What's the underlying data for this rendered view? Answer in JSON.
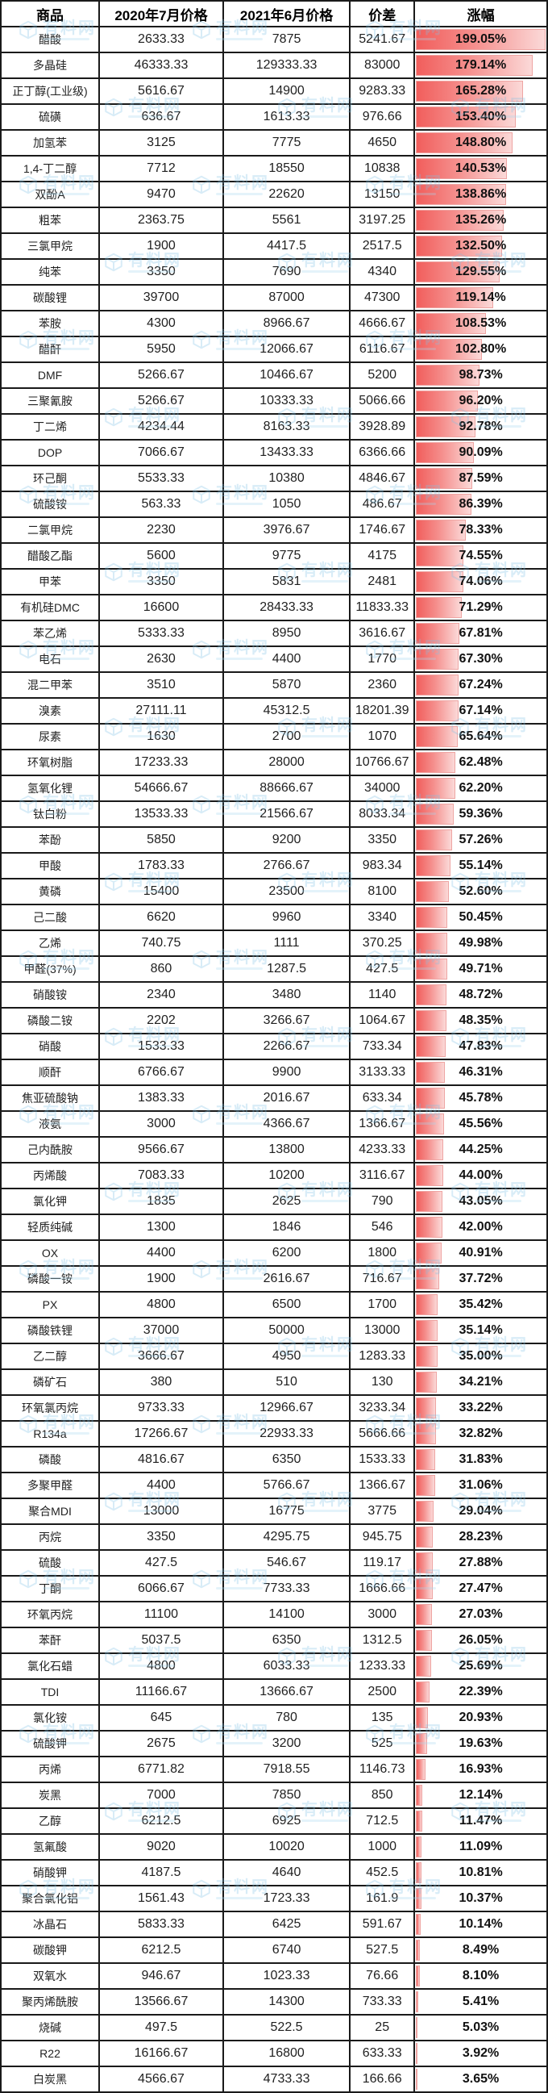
{
  "watermark": {
    "text": "有料网",
    "color": "#7fc2e6"
  },
  "chart_data": {
    "type": "table",
    "columns": [
      "商品",
      "2020年7月价格",
      "2021年6月价格",
      "价差",
      "涨幅"
    ],
    "bar_column_index": 4,
    "bar_axis_max_percent": 199.05,
    "bar_gradient": [
      "#f15e5c",
      "#fbd9d8"
    ],
    "bar_border_color": "#eea5a3",
    "rows": [
      [
        "醋酸",
        "2633.33",
        "7875",
        "5241.67",
        "199.05%"
      ],
      [
        "多晶硅",
        "46333.33",
        "129333.33",
        "83000",
        "179.14%"
      ],
      [
        "正丁醇(工业级)",
        "5616.67",
        "14900",
        "9283.33",
        "165.28%"
      ],
      [
        "硫磺",
        "636.67",
        "1613.33",
        "976.66",
        "153.40%"
      ],
      [
        "加氢苯",
        "3125",
        "7775",
        "4650",
        "148.80%"
      ],
      [
        "1,4-丁二醇",
        "7712",
        "18550",
        "10838",
        "140.53%"
      ],
      [
        "双酚A",
        "9470",
        "22620",
        "13150",
        "138.86%"
      ],
      [
        "粗苯",
        "2363.75",
        "5561",
        "3197.25",
        "135.26%"
      ],
      [
        "三氯甲烷",
        "1900",
        "4417.5",
        "2517.5",
        "132.50%"
      ],
      [
        "纯苯",
        "3350",
        "7690",
        "4340",
        "129.55%"
      ],
      [
        "碳酸锂",
        "39700",
        "87000",
        "47300",
        "119.14%"
      ],
      [
        "苯胺",
        "4300",
        "8966.67",
        "4666.67",
        "108.53%"
      ],
      [
        "醋酐",
        "5950",
        "12066.67",
        "6116.67",
        "102.80%"
      ],
      [
        "DMF",
        "5266.67",
        "10466.67",
        "5200",
        "98.73%"
      ],
      [
        "三聚氰胺",
        "5266.67",
        "10333.33",
        "5066.66",
        "96.20%"
      ],
      [
        "丁二烯",
        "4234.44",
        "8163.33",
        "3928.89",
        "92.78%"
      ],
      [
        "DOP",
        "7066.67",
        "13433.33",
        "6366.66",
        "90.09%"
      ],
      [
        "环己酮",
        "5533.33",
        "10380",
        "4846.67",
        "87.59%"
      ],
      [
        "硫酸铵",
        "563.33",
        "1050",
        "486.67",
        "86.39%"
      ],
      [
        "二氯甲烷",
        "2230",
        "3976.67",
        "1746.67",
        "78.33%"
      ],
      [
        "醋酸乙酯",
        "5600",
        "9775",
        "4175",
        "74.55%"
      ],
      [
        "甲苯",
        "3350",
        "5831",
        "2481",
        "74.06%"
      ],
      [
        "有机硅DMC",
        "16600",
        "28433.33",
        "11833.33",
        "71.29%"
      ],
      [
        "苯乙烯",
        "5333.33",
        "8950",
        "3616.67",
        "67.81%"
      ],
      [
        "电石",
        "2630",
        "4400",
        "1770",
        "67.30%"
      ],
      [
        "混二甲苯",
        "3510",
        "5870",
        "2360",
        "67.24%"
      ],
      [
        "溴素",
        "27111.11",
        "45312.5",
        "18201.39",
        "67.14%"
      ],
      [
        "尿素",
        "1630",
        "2700",
        "1070",
        "65.64%"
      ],
      [
        "环氧树脂",
        "17233.33",
        "28000",
        "10766.67",
        "62.48%"
      ],
      [
        "氢氧化锂",
        "54666.67",
        "88666.67",
        "34000",
        "62.20%"
      ],
      [
        "钛白粉",
        "13533.33",
        "21566.67",
        "8033.34",
        "59.36%"
      ],
      [
        "苯酚",
        "5850",
        "9200",
        "3350",
        "57.26%"
      ],
      [
        "甲酸",
        "1783.33",
        "2766.67",
        "983.34",
        "55.14%"
      ],
      [
        "黄磷",
        "15400",
        "23500",
        "8100",
        "52.60%"
      ],
      [
        "己二酸",
        "6620",
        "9960",
        "3340",
        "50.45%"
      ],
      [
        "乙烯",
        "740.75",
        "1111",
        "370.25",
        "49.98%"
      ],
      [
        "甲醛(37%)",
        "860",
        "1287.5",
        "427.5",
        "49.71%"
      ],
      [
        "硝酸铵",
        "2340",
        "3480",
        "1140",
        "48.72%"
      ],
      [
        "磷酸二铵",
        "2202",
        "3266.67",
        "1064.67",
        "48.35%"
      ],
      [
        "硝酸",
        "1533.33",
        "2266.67",
        "733.34",
        "47.83%"
      ],
      [
        "顺酐",
        "6766.67",
        "9900",
        "3133.33",
        "46.31%"
      ],
      [
        "焦亚硫酸钠",
        "1383.33",
        "2016.67",
        "633.34",
        "45.78%"
      ],
      [
        "液氨",
        "3000",
        "4366.67",
        "1366.67",
        "45.56%"
      ],
      [
        "己内酰胺",
        "9566.67",
        "13800",
        "4233.33",
        "44.25%"
      ],
      [
        "丙烯酸",
        "7083.33",
        "10200",
        "3116.67",
        "44.00%"
      ],
      [
        "氯化钾",
        "1835",
        "2625",
        "790",
        "43.05%"
      ],
      [
        "轻质纯碱",
        "1300",
        "1846",
        "546",
        "42.00%"
      ],
      [
        "OX",
        "4400",
        "6200",
        "1800",
        "40.91%"
      ],
      [
        "磷酸一铵",
        "1900",
        "2616.67",
        "716.67",
        "37.72%"
      ],
      [
        "PX",
        "4800",
        "6500",
        "1700",
        "35.42%"
      ],
      [
        "磷酸铁锂",
        "37000",
        "50000",
        "13000",
        "35.14%"
      ],
      [
        "乙二醇",
        "3666.67",
        "4950",
        "1283.33",
        "35.00%"
      ],
      [
        "磷矿石",
        "380",
        "510",
        "130",
        "34.21%"
      ],
      [
        "环氧氯丙烷",
        "9733.33",
        "12966.67",
        "3233.34",
        "33.22%"
      ],
      [
        "R134a",
        "17266.67",
        "22933.33",
        "5666.66",
        "32.82%"
      ],
      [
        "磷酸",
        "4816.67",
        "6350",
        "1533.33",
        "31.83%"
      ],
      [
        "多聚甲醛",
        "4400",
        "5766.67",
        "1366.67",
        "31.06%"
      ],
      [
        "聚合MDI",
        "13000",
        "16775",
        "3775",
        "29.04%"
      ],
      [
        "丙烷",
        "3350",
        "4295.75",
        "945.75",
        "28.23%"
      ],
      [
        "硫酸",
        "427.5",
        "546.67",
        "119.17",
        "27.88%"
      ],
      [
        "丁酮",
        "6066.67",
        "7733.33",
        "1666.66",
        "27.47%"
      ],
      [
        "环氧丙烷",
        "11100",
        "14100",
        "3000",
        "27.03%"
      ],
      [
        "苯酐",
        "5037.5",
        "6350",
        "1312.5",
        "26.05%"
      ],
      [
        "氯化石蜡",
        "4800",
        "6033.33",
        "1233.33",
        "25.69%"
      ],
      [
        "TDI",
        "11166.67",
        "13666.67",
        "2500",
        "22.39%"
      ],
      [
        "氯化铵",
        "645",
        "780",
        "135",
        "20.93%"
      ],
      [
        "硫酸钾",
        "2675",
        "3200",
        "525",
        "19.63%"
      ],
      [
        "丙烯",
        "6771.82",
        "7918.55",
        "1146.73",
        "16.93%"
      ],
      [
        "炭黑",
        "7000",
        "7850",
        "850",
        "12.14%"
      ],
      [
        "乙醇",
        "6212.5",
        "6925",
        "712.5",
        "11.47%"
      ],
      [
        "氢氟酸",
        "9020",
        "10020",
        "1000",
        "11.09%"
      ],
      [
        "硝酸钾",
        "4187.5",
        "4640",
        "452.5",
        "10.81%"
      ],
      [
        "聚合氯化铝",
        "1561.43",
        "1723.33",
        "161.9",
        "10.37%"
      ],
      [
        "冰晶石",
        "5833.33",
        "6425",
        "591.67",
        "10.14%"
      ],
      [
        "碳酸钾",
        "6212.5",
        "6740",
        "527.5",
        "8.49%"
      ],
      [
        "双氧水",
        "946.67",
        "1023.33",
        "76.66",
        "8.10%"
      ],
      [
        "聚丙烯酰胺",
        "13566.67",
        "14300",
        "733.33",
        "5.41%"
      ],
      [
        "烧碱",
        "497.5",
        "522.5",
        "25",
        "5.03%"
      ],
      [
        "R22",
        "16166.67",
        "16800",
        "633.33",
        "3.92%"
      ],
      [
        "白炭黑",
        "4566.67",
        "4733.33",
        "166.66",
        "3.65%"
      ]
    ]
  }
}
